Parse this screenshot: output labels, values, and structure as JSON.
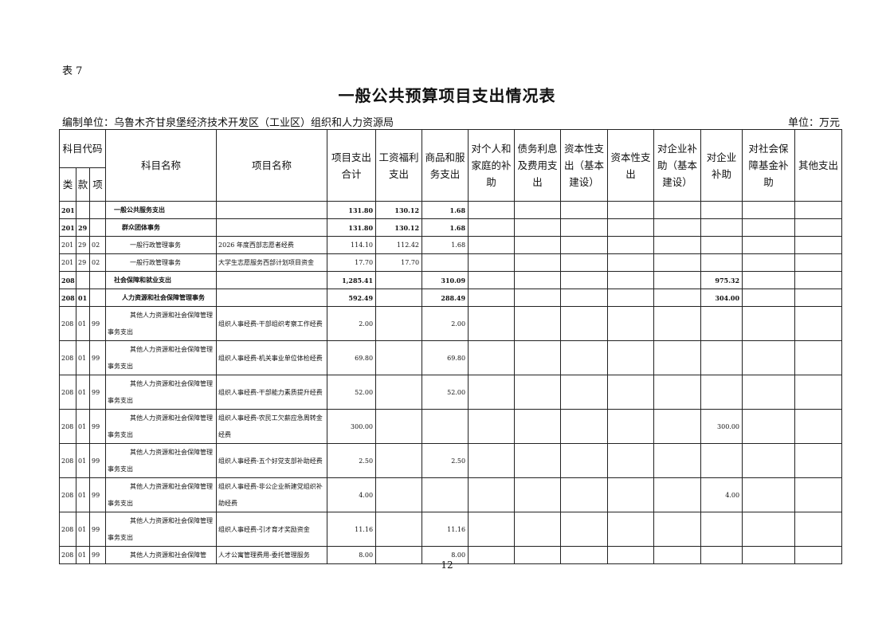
{
  "table_label": "表 7",
  "title": "一般公共预算项目支出情况表",
  "unit_label": "编制单位：乌鲁木齐甘泉堡经济技术开发区（工业区）组织和人力资源局",
  "currency_unit": "单位：万元",
  "page_number": "12",
  "headers": {
    "code_group": "科目代码",
    "lei": "类",
    "kuan": "款",
    "xiang": "项",
    "subject_name": "科目名称",
    "project_name": "项目名称",
    "total": "项目支出合计",
    "wages": "工资福利支出",
    "goods_services": "商品和服务支出",
    "household_subsidy": "对个人和家庭的补助",
    "debt_interest": "债务利息及费用支出",
    "capital_basic": "资本性支出（基本建设）",
    "capital": "资本性支出",
    "enterprise_subsidy_basic": "对企业补助（基本建设）",
    "enterprise_subsidy": "对企业补助",
    "social_security_fund": "对社会保障基金补助",
    "other": "其他支出"
  },
  "rows": [
    {
      "lei": "201",
      "kuan": "",
      "xiang": "",
      "subject": "一般公共服务支出",
      "level": 1,
      "bold": true,
      "project": "",
      "total": "131.80",
      "wages": "130.12",
      "goods": "1.68",
      "enterprise": ""
    },
    {
      "lei": "201",
      "kuan": "29",
      "xiang": "",
      "subject": "群众团体事务",
      "level": 2,
      "bold": true,
      "project": "",
      "total": "131.80",
      "wages": "130.12",
      "goods": "1.68",
      "enterprise": ""
    },
    {
      "lei": "201",
      "kuan": "29",
      "xiang": "02",
      "subject": "一般行政管理事务",
      "level": 3,
      "bold": false,
      "project": "2026 年度西部志愿者经费",
      "total": "114.10",
      "wages": "112.42",
      "goods": "1.68",
      "enterprise": ""
    },
    {
      "lei": "201",
      "kuan": "29",
      "xiang": "02",
      "subject": "一般行政管理事务",
      "level": 3,
      "bold": false,
      "project": "大学生志愿服务西部计划项目资金",
      "total": "17.70",
      "wages": "17.70",
      "goods": "",
      "enterprise": ""
    },
    {
      "lei": "208",
      "kuan": "",
      "xiang": "",
      "subject": "社会保障和就业支出",
      "level": 1,
      "bold": true,
      "project": "",
      "total": "1,285.41",
      "wages": "",
      "goods": "310.09",
      "enterprise": "975.32"
    },
    {
      "lei": "208",
      "kuan": "01",
      "xiang": "",
      "subject": "人力资源和社会保障管理事务",
      "level": 2,
      "bold": true,
      "project": "",
      "total": "592.49",
      "wages": "",
      "goods": "288.49",
      "enterprise": "304.00"
    },
    {
      "lei": "208",
      "kuan": "01",
      "xiang": "99",
      "subject": "其他人力资源和社会保障管理事务支出",
      "level": 3,
      "bold": false,
      "project": "组织人事经费-干部组织考察工作经费",
      "total": "2.00",
      "wages": "",
      "goods": "2.00",
      "enterprise": ""
    },
    {
      "lei": "208",
      "kuan": "01",
      "xiang": "99",
      "subject": "其他人力资源和社会保障管理事务支出",
      "level": 3,
      "bold": false,
      "project": "组织人事经费-机关事业单位体检经费",
      "total": "69.80",
      "wages": "",
      "goods": "69.80",
      "enterprise": ""
    },
    {
      "lei": "208",
      "kuan": "01",
      "xiang": "99",
      "subject": "其他人力资源和社会保障管理事务支出",
      "level": 3,
      "bold": false,
      "project": "组织人事经费-干部能力素质提升经费",
      "total": "52.00",
      "wages": "",
      "goods": "52.00",
      "enterprise": ""
    },
    {
      "lei": "208",
      "kuan": "01",
      "xiang": "99",
      "subject": "其他人力资源和社会保障管理事务支出",
      "level": 3,
      "bold": false,
      "project": "组织人事经费-农民工欠薪应急周转金经费",
      "total": "300.00",
      "wages": "",
      "goods": "",
      "enterprise": "300.00"
    },
    {
      "lei": "208",
      "kuan": "01",
      "xiang": "99",
      "subject": "其他人力资源和社会保障管理事务支出",
      "level": 3,
      "bold": false,
      "project": "组织人事经费-五个好党支部补助经费",
      "total": "2.50",
      "wages": "",
      "goods": "2.50",
      "enterprise": ""
    },
    {
      "lei": "208",
      "kuan": "01",
      "xiang": "99",
      "subject": "其他人力资源和社会保障管理事务支出",
      "level": 3,
      "bold": false,
      "project": "组织人事经费-非公企业新建党组织补助经费",
      "total": "4.00",
      "wages": "",
      "goods": "",
      "enterprise": "4.00"
    },
    {
      "lei": "208",
      "kuan": "01",
      "xiang": "99",
      "subject": "其他人力资源和社会保障管理事务支出",
      "level": 3,
      "bold": false,
      "project": "组织人事经费-引才育才奖励资金",
      "total": "11.16",
      "wages": "",
      "goods": "11.16",
      "enterprise": ""
    },
    {
      "lei": "208",
      "kuan": "01",
      "xiang": "99",
      "subject": "其他人力资源和社会保障管",
      "level": 3,
      "bold": false,
      "project": "人才公寓管理费用-委托管理服务",
      "total": "8.00",
      "wages": "",
      "goods": "8.00",
      "enterprise": ""
    }
  ]
}
